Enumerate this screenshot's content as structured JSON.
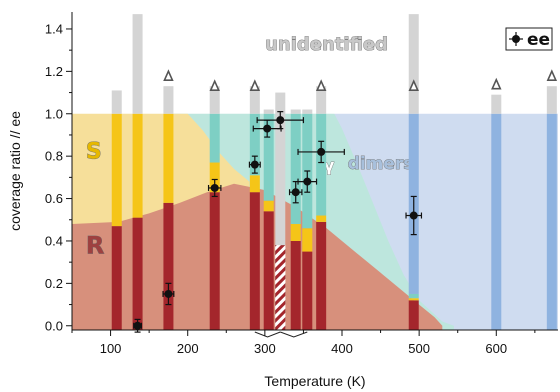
{
  "chart_data": {
    "type": "bar",
    "xlabel": "Temperature (K)",
    "ylabel": "coverage ratio // ee",
    "xlim": [
      50,
      680
    ],
    "ylim": [
      -0.02,
      1.48
    ],
    "x_ticks": [
      100,
      200,
      300,
      400,
      500,
      600
    ],
    "y_ticks": [
      0.0,
      0.2,
      0.4,
      0.6,
      0.8,
      1.0,
      1.2,
      1.4
    ],
    "legend": {
      "label": "ee",
      "position": "top-right"
    },
    "region_labels": [
      {
        "text": "S",
        "color": "#e6b800"
      },
      {
        "text": "R",
        "color": "#9e4040"
      },
      {
        "text": "γ",
        "color": "#ffffff"
      },
      {
        "text": "dimers",
        "color": "#a8c0dc"
      },
      {
        "text": "unidentified",
        "color": "#c8c8c8"
      }
    ],
    "bar_segments": [
      "R",
      "S",
      "γ",
      "dimers",
      "unidentified"
    ],
    "colors": {
      "R": "#a4262c",
      "S": "#f5c518",
      "gamma": "#7ecfc4",
      "dimers": "#8fb3e0",
      "unidentified": "#d4d4d4",
      "bg_R": "#d7907c",
      "bg_S": "#f6df9a",
      "bg_gamma": "#bde6dd",
      "bg_dimers": "#cfdcf0"
    },
    "bars": [
      {
        "T": 108,
        "R": 0.47,
        "S": 0.53,
        "gamma": 0.0,
        "dimers": 0.0,
        "unidentified": 0.11
      },
      {
        "T": 135,
        "R": 0.51,
        "S": 0.49,
        "gamma": 0.0,
        "dimers": 0.0,
        "unidentified": 0.47
      },
      {
        "T": 175,
        "R": 0.58,
        "S": 0.42,
        "gamma": 0.0,
        "dimers": 0.0,
        "unidentified": 0.13,
        "triangle": true
      },
      {
        "T": 235,
        "R": 0.63,
        "S": 0.14,
        "gamma": 0.23,
        "dimers": 0.0,
        "unidentified": 0.13,
        "triangle": true
      },
      {
        "T": 287,
        "R": 0.63,
        "S": 0.08,
        "gamma": 0.29,
        "dimers": 0.0,
        "unidentified": 0.13,
        "triangle": true
      },
      {
        "T": 305,
        "R": 0.54,
        "S": 0.05,
        "gamma": 0.41,
        "dimers": 0.0,
        "unidentified": 0.02
      },
      {
        "T": 320,
        "R": 0.0,
        "S": 0.0,
        "gamma": 0.38,
        "dimers": 0.0,
        "unidentified": 0.72,
        "hatched": true
      },
      {
        "T": 340,
        "R": 0.4,
        "S": 0.08,
        "gamma": 0.52,
        "dimers": 0.0,
        "unidentified": 0.02
      },
      {
        "T": 355,
        "R": 0.35,
        "S": 0.11,
        "gamma": 0.54,
        "dimers": 0.0,
        "unidentified": 0.02
      },
      {
        "T": 373,
        "R": 0.49,
        "S": 0.03,
        "gamma": 0.48,
        "dimers": 0.0,
        "unidentified": 0.13,
        "triangle": true
      },
      {
        "T": 493,
        "R": 0.12,
        "S": 0.01,
        "gamma": 0.02,
        "dimers": 0.85,
        "unidentified": 0.47,
        "triangle": true
      },
      {
        "T": 600,
        "R": 0.0,
        "S": 0.0,
        "gamma": 0.0,
        "dimers": 1.0,
        "unidentified": 0.09,
        "triangle": true
      },
      {
        "T": 672,
        "R": 0.0,
        "S": 0.0,
        "gamma": 0.0,
        "dimers": 1.0,
        "unidentified": 0.13,
        "triangle": true
      }
    ],
    "ee": [
      {
        "T": 135,
        "y": 0.0,
        "xerr": 5,
        "yerr": 0.03
      },
      {
        "T": 175,
        "y": 0.15,
        "xerr": 7,
        "yerr": 0.05
      },
      {
        "T": 235,
        "y": 0.65,
        "xerr": 8,
        "yerr": 0.04
      },
      {
        "T": 287,
        "y": 0.76,
        "xerr": 7,
        "yerr": 0.04
      },
      {
        "T": 303,
        "y": 0.93,
        "xerr": 18,
        "yerr": 0.04
      },
      {
        "T": 320,
        "y": 0.97,
        "xerr": 30,
        "yerr": 0.04
      },
      {
        "T": 340,
        "y": 0.63,
        "xerr": 8,
        "yerr": 0.05
      },
      {
        "T": 355,
        "y": 0.68,
        "xerr": 12,
        "yerr": 0.05
      },
      {
        "T": 373,
        "y": 0.82,
        "xerr": 30,
        "yerr": 0.05
      },
      {
        "T": 493,
        "y": 0.52,
        "xerr": 10,
        "yerr": 0.09
      }
    ],
    "background_regions": {
      "R_boundary": [
        [
          50,
          0.48
        ],
        [
          110,
          0.49
        ],
        [
          150,
          0.53
        ],
        [
          190,
          0.58
        ],
        [
          225,
          0.63
        ],
        [
          260,
          0.67
        ],
        [
          300,
          0.64
        ],
        [
          340,
          0.56
        ],
        [
          380,
          0.46
        ],
        [
          420,
          0.34
        ],
        [
          460,
          0.22
        ],
        [
          500,
          0.1
        ],
        [
          520,
          0.04
        ],
        [
          530,
          0.0
        ]
      ],
      "S_boundary": [
        [
          50,
          1.0
        ],
        [
          100,
          1.0
        ],
        [
          180,
          1.0
        ],
        [
          200,
          1.0
        ],
        [
          220,
          0.92
        ],
        [
          240,
          0.82
        ],
        [
          260,
          0.74
        ],
        [
          280,
          0.68
        ]
      ],
      "gamma_boundary": [
        [
          180,
          1.0
        ],
        [
          390,
          1.0
        ],
        [
          400,
          0.93
        ],
        [
          420,
          0.76
        ],
        [
          440,
          0.58
        ],
        [
          460,
          0.4
        ],
        [
          480,
          0.24
        ],
        [
          500,
          0.12
        ],
        [
          530,
          0.02
        ],
        [
          545,
          0.0
        ]
      ],
      "dimers_range": [
        390,
        680
      ]
    },
    "brackets": [
      {
        "from": 287,
        "to": 320
      },
      {
        "from": 320,
        "to": 355
      }
    ]
  }
}
